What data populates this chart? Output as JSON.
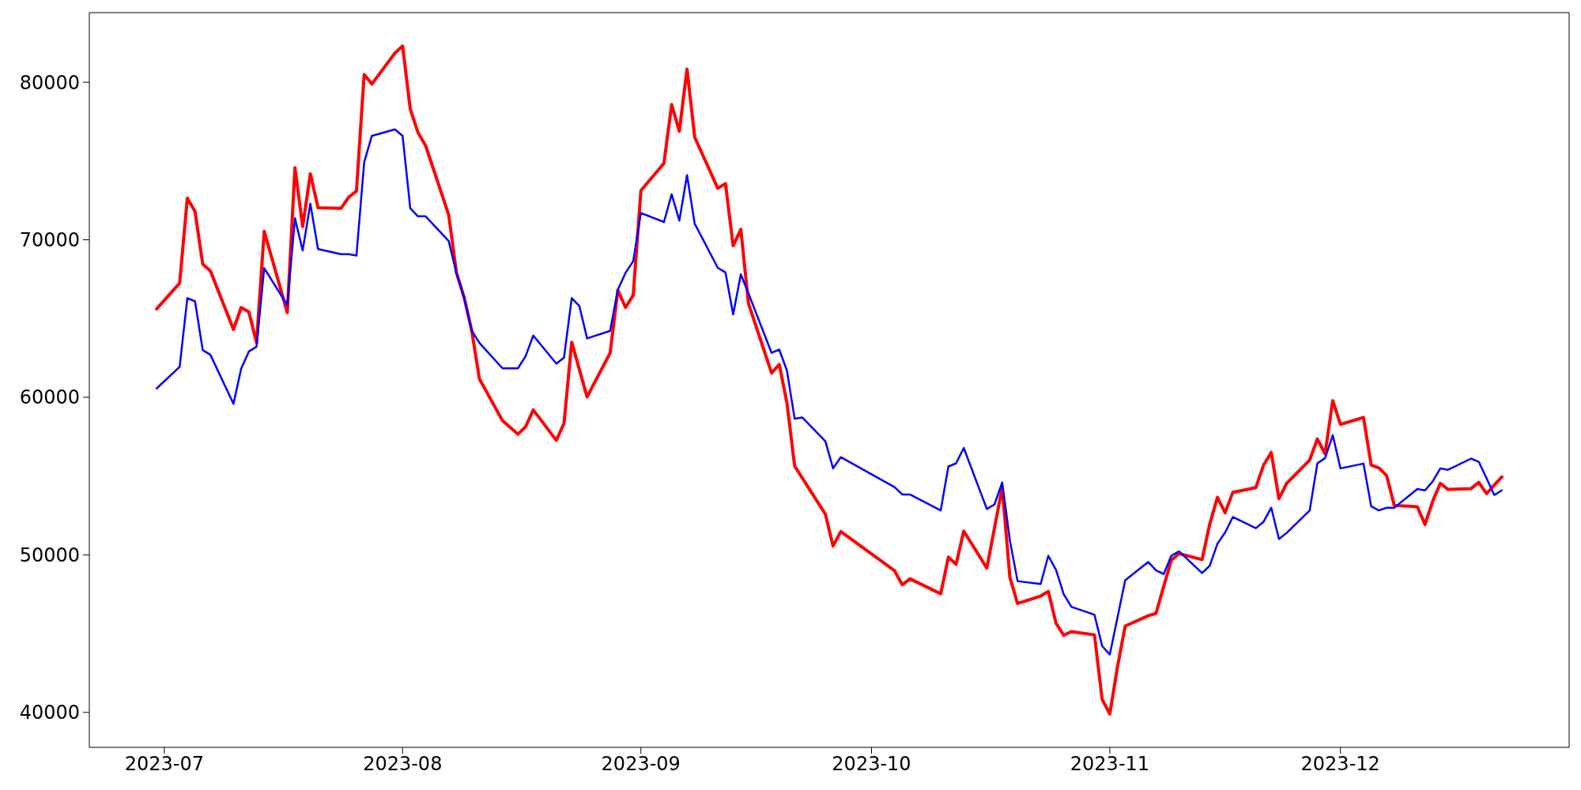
{
  "chart_data": {
    "type": "line",
    "xlim": [
      "2023-06-21T06:00",
      "2023-12-30T18:00"
    ],
    "xticks": [
      {
        "value": "2023-07-01",
        "label": "2023-07"
      },
      {
        "value": "2023-08-01",
        "label": "2023-08"
      },
      {
        "value": "2023-09-01",
        "label": "2023-09"
      },
      {
        "value": "2023-10-01",
        "label": "2023-10"
      },
      {
        "value": "2023-11-01",
        "label": "2023-11"
      },
      {
        "value": "2023-12-01",
        "label": "2023-12"
      }
    ],
    "ylim": [
      37780,
      84420
    ],
    "yticks": [
      40000,
      50000,
      60000,
      70000,
      80000
    ],
    "series": [
      {
        "color": "#ff0000",
        "x": [
          "2023-06-30",
          "2023-07-03",
          "2023-07-04",
          "2023-07-05",
          "2023-07-06",
          "2023-07-07",
          "2023-07-10",
          "2023-07-11",
          "2023-07-12",
          "2023-07-13",
          "2023-07-14",
          "2023-07-17",
          "2023-07-18",
          "2023-07-19",
          "2023-07-20",
          "2023-07-21",
          "2023-07-24",
          "2023-07-25",
          "2023-07-26",
          "2023-07-27",
          "2023-07-28",
          "2023-07-31",
          "2023-08-01",
          "2023-08-02",
          "2023-08-03",
          "2023-08-04",
          "2023-08-07",
          "2023-08-08",
          "2023-08-09",
          "2023-08-10",
          "2023-08-11",
          "2023-08-14",
          "2023-08-16",
          "2023-08-17",
          "2023-08-18",
          "2023-08-21",
          "2023-08-22",
          "2023-08-23",
          "2023-08-25",
          "2023-08-28",
          "2023-08-29",
          "2023-08-30",
          "2023-08-31",
          "2023-09-01",
          "2023-09-04",
          "2023-09-05",
          "2023-09-06",
          "2023-09-07",
          "2023-09-08",
          "2023-09-11",
          "2023-09-12",
          "2023-09-13",
          "2023-09-14",
          "2023-09-15",
          "2023-09-18",
          "2023-09-19",
          "2023-09-20",
          "2023-09-21",
          "2023-09-25",
          "2023-09-26",
          "2023-09-27",
          "2023-10-04",
          "2023-10-05",
          "2023-10-06",
          "2023-10-10",
          "2023-10-11",
          "2023-10-12",
          "2023-10-13",
          "2023-10-16",
          "2023-10-18",
          "2023-10-19",
          "2023-10-20",
          "2023-10-23",
          "2023-10-24",
          "2023-10-25",
          "2023-10-26",
          "2023-10-27",
          "2023-10-30",
          "2023-10-31",
          "2023-11-01",
          "2023-11-02",
          "2023-11-03",
          "2023-11-06",
          "2023-11-07",
          "2023-11-09",
          "2023-11-10",
          "2023-11-13",
          "2023-11-14",
          "2023-11-15",
          "2023-11-16",
          "2023-11-17",
          "2023-11-20",
          "2023-11-21",
          "2023-11-22",
          "2023-11-23",
          "2023-11-24",
          "2023-11-27",
          "2023-11-28",
          "2023-11-29",
          "2023-11-30",
          "2023-12-01",
          "2023-12-04",
          "2023-12-05",
          "2023-12-06",
          "2023-12-07",
          "2023-12-08",
          "2023-12-11",
          "2023-12-12",
          "2023-12-13",
          "2023-12-14",
          "2023-12-15",
          "2023-12-18",
          "2023-12-19",
          "2023-12-20",
          "2023-12-21",
          "2023-12-22"
        ],
        "values": [
          65610,
          67250,
          72650,
          71790,
          68460,
          68020,
          64310,
          65700,
          65430,
          63470,
          70540,
          65380,
          74580,
          70840,
          74190,
          72030,
          72000,
          72710,
          73090,
          80490,
          79890,
          81850,
          82300,
          78290,
          76810,
          75970,
          71580,
          67930,
          66350,
          64220,
          61160,
          58520,
          57660,
          58130,
          59200,
          57270,
          58340,
          63500,
          60030,
          62820,
          66800,
          65700,
          66470,
          73120,
          74850,
          78590,
          76890,
          80840,
          76510,
          73270,
          73570,
          69620,
          70660,
          65940,
          61540,
          62080,
          59640,
          55640,
          52580,
          50560,
          51480,
          48990,
          48100,
          48480,
          47530,
          49850,
          49400,
          51510,
          49160,
          54270,
          48570,
          46910,
          47380,
          47680,
          45660,
          44890,
          45130,
          44920,
          40820,
          39900,
          42900,
          45480,
          46140,
          46280,
          49670,
          50080,
          49700,
          51960,
          53650,
          52670,
          53970,
          54270,
          55700,
          56500,
          53560,
          54540,
          56020,
          57360,
          56410,
          59790,
          58280,
          58720,
          55700,
          55520,
          55040,
          53140,
          53050,
          51930,
          53410,
          54540,
          54150,
          54210,
          54600,
          53880,
          54420,
          54950
        ]
      },
      {
        "color": "#0000ff",
        "x": [
          "2023-06-30",
          "2023-07-03",
          "2023-07-04",
          "2023-07-05",
          "2023-07-06",
          "2023-07-07",
          "2023-07-10",
          "2023-07-11",
          "2023-07-12",
          "2023-07-13",
          "2023-07-14",
          "2023-07-17",
          "2023-07-18",
          "2023-07-19",
          "2023-07-20",
          "2023-07-21",
          "2023-07-24",
          "2023-07-25",
          "2023-07-26",
          "2023-07-27",
          "2023-07-28",
          "2023-07-31",
          "2023-08-01",
          "2023-08-02",
          "2023-08-03",
          "2023-08-04",
          "2023-08-07",
          "2023-08-08",
          "2023-08-09",
          "2023-08-10",
          "2023-08-11",
          "2023-08-14",
          "2023-08-16",
          "2023-08-17",
          "2023-08-18",
          "2023-08-21",
          "2023-08-22",
          "2023-08-23",
          "2023-08-24",
          "2023-08-25",
          "2023-08-28",
          "2023-08-29",
          "2023-08-30",
          "2023-08-31",
          "2023-09-01",
          "2023-09-04",
          "2023-09-05",
          "2023-09-06",
          "2023-09-07",
          "2023-09-08",
          "2023-09-11",
          "2023-09-12",
          "2023-09-13",
          "2023-09-14",
          "2023-09-15",
          "2023-09-18",
          "2023-09-19",
          "2023-09-20",
          "2023-09-21",
          "2023-09-22",
          "2023-09-25",
          "2023-09-26",
          "2023-09-27",
          "2023-10-04",
          "2023-10-05",
          "2023-10-06",
          "2023-10-10",
          "2023-10-11",
          "2023-10-12",
          "2023-10-13",
          "2023-10-16",
          "2023-10-17",
          "2023-10-18",
          "2023-10-19",
          "2023-10-20",
          "2023-10-23",
          "2023-10-24",
          "2023-10-25",
          "2023-10-26",
          "2023-10-27",
          "2023-10-30",
          "2023-10-31",
          "2023-11-01",
          "2023-11-03",
          "2023-11-06",
          "2023-11-07",
          "2023-11-08",
          "2023-11-09",
          "2023-11-10",
          "2023-11-13",
          "2023-11-14",
          "2023-11-15",
          "2023-11-16",
          "2023-11-17",
          "2023-11-20",
          "2023-11-21",
          "2023-11-22",
          "2023-11-23",
          "2023-11-24",
          "2023-11-27",
          "2023-11-28",
          "2023-11-29",
          "2023-11-30",
          "2023-12-01",
          "2023-12-04",
          "2023-12-05",
          "2023-12-06",
          "2023-12-07",
          "2023-12-08",
          "2023-12-11",
          "2023-12-12",
          "2023-12-13",
          "2023-12-14",
          "2023-12-15",
          "2023-12-18",
          "2023-12-19",
          "2023-12-20",
          "2023-12-21",
          "2023-12-22"
        ],
        "values": [
          60560,
          61930,
          66300,
          66090,
          63000,
          62700,
          59590,
          61810,
          62910,
          63210,
          68200,
          65850,
          71370,
          69320,
          72290,
          69410,
          69090,
          69090,
          69000,
          74910,
          76600,
          77010,
          76600,
          72000,
          71490,
          71490,
          69920,
          67900,
          66350,
          64220,
          63450,
          61840,
          61840,
          62610,
          63920,
          62140,
          62520,
          66300,
          65790,
          63740,
          64220,
          66830,
          67900,
          68640,
          71700,
          71130,
          72890,
          71220,
          74100,
          71020,
          68220,
          67930,
          65260,
          67810,
          66590,
          62820,
          63030,
          61690,
          58640,
          58720,
          57210,
          55490,
          56200,
          54300,
          53830,
          53830,
          52820,
          55610,
          55810,
          56790,
          52910,
          53200,
          54600,
          50920,
          48330,
          48150,
          49940,
          49050,
          47500,
          46700,
          46200,
          44210,
          43670,
          48390,
          49550,
          49020,
          48780,
          49940,
          50220,
          48840,
          49310,
          50710,
          51420,
          52400,
          51690,
          52100,
          52990,
          51010,
          51390,
          52820,
          55810,
          56140,
          57600,
          55490,
          55790,
          53080,
          52820,
          52990,
          52990,
          54180,
          54090,
          54660,
          55490,
          55400,
          56110,
          55900,
          54870,
          53800,
          54090
        ]
      }
    ]
  }
}
